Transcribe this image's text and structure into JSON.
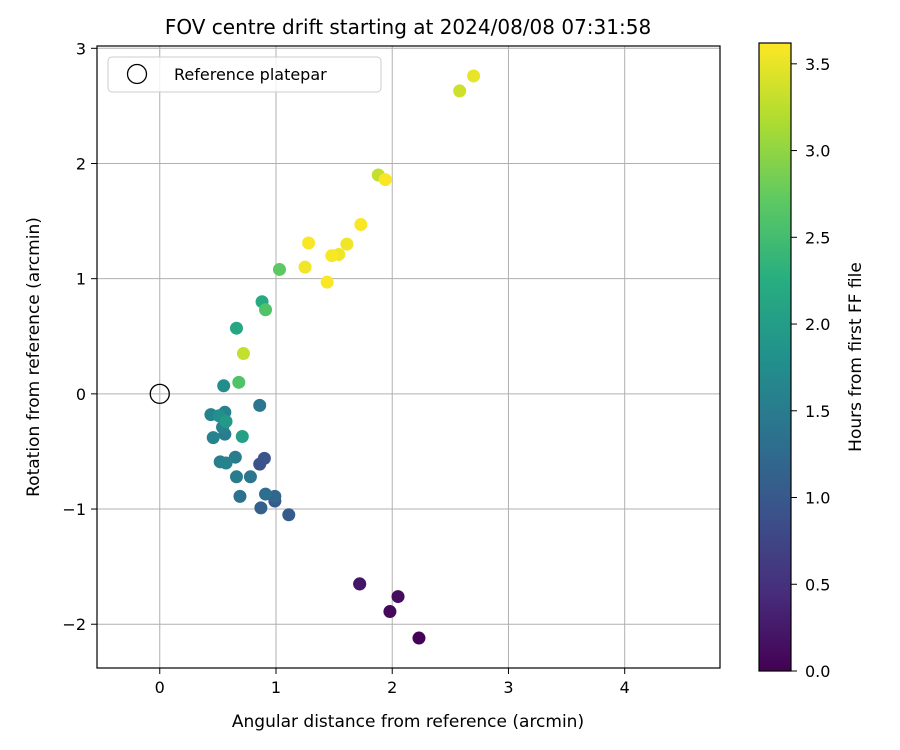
{
  "chart_data": {
    "type": "scatter",
    "title": "FOV centre drift starting at 2024/08/08 07:31:58",
    "xlabel": "Angular distance from reference (arcmin)",
    "ylabel": "Rotation from reference (arcmin)",
    "xlim": [
      -0.54,
      4.82
    ],
    "ylim": [
      -2.38,
      3.02
    ],
    "xticks": [
      0,
      1,
      2,
      3,
      4
    ],
    "yticks": [
      -2,
      -1,
      0,
      1,
      2,
      3
    ],
    "xtick_labels": [
      "0",
      "1",
      "2",
      "3",
      "4"
    ],
    "ytick_labels": [
      "−2",
      "−1",
      "0",
      "1",
      "2",
      "3"
    ],
    "grid": true,
    "legend": {
      "position": "upper-left",
      "entries": [
        "Reference platepar"
      ]
    },
    "reference_point": {
      "x": 0,
      "y": 0
    },
    "colorbar": {
      "label": "Hours from first FF file",
      "colormap": "viridis",
      "range": [
        0,
        3.62
      ],
      "ticks": [
        0,
        0.5,
        1,
        1.5,
        2,
        2.5,
        3,
        3.5
      ],
      "tick_labels": [
        "0.0",
        "0.5",
        "1.0",
        "1.5",
        "2.0",
        "2.5",
        "3.0",
        "3.5"
      ]
    },
    "points": [
      {
        "x": 2.23,
        "y": -2.12,
        "c": 0.02
      },
      {
        "x": 1.98,
        "y": -1.89,
        "c": 0.08
      },
      {
        "x": 2.05,
        "y": -1.76,
        "c": 0.12
      },
      {
        "x": 1.72,
        "y": -1.65,
        "c": 0.18
      },
      {
        "x": 1.72,
        "y": -1.65,
        "c": 0.22
      },
      {
        "x": 1.11,
        "y": -1.05,
        "c": 1.05
      },
      {
        "x": 0.87,
        "y": -0.99,
        "c": 1.1
      },
      {
        "x": 0.99,
        "y": -0.93,
        "c": 1.0
      },
      {
        "x": 0.69,
        "y": -0.89,
        "c": 1.35
      },
      {
        "x": 0.91,
        "y": -0.87,
        "c": 1.3
      },
      {
        "x": 0.99,
        "y": -0.89,
        "c": 1.2
      },
      {
        "x": 0.78,
        "y": -0.72,
        "c": 1.4
      },
      {
        "x": 0.66,
        "y": -0.72,
        "c": 1.5
      },
      {
        "x": 0.86,
        "y": -0.61,
        "c": 0.9
      },
      {
        "x": 0.9,
        "y": -0.56,
        "c": 0.95
      },
      {
        "x": 0.52,
        "y": -0.59,
        "c": 1.55
      },
      {
        "x": 0.57,
        "y": -0.6,
        "c": 1.6
      },
      {
        "x": 0.65,
        "y": -0.55,
        "c": 1.5
      },
      {
        "x": 0.46,
        "y": -0.38,
        "c": 1.6
      },
      {
        "x": 0.56,
        "y": -0.35,
        "c": 1.5
      },
      {
        "x": 0.71,
        "y": -0.37,
        "c": 2.05
      },
      {
        "x": 0.54,
        "y": -0.29,
        "c": 1.6
      },
      {
        "x": 0.57,
        "y": -0.24,
        "c": 1.95
      },
      {
        "x": 0.44,
        "y": -0.18,
        "c": 1.6
      },
      {
        "x": 0.51,
        "y": -0.19,
        "c": 1.8
      },
      {
        "x": 0.56,
        "y": -0.16,
        "c": 1.6
      },
      {
        "x": 0.86,
        "y": -0.1,
        "c": 1.4
      },
      {
        "x": 0.55,
        "y": 0.07,
        "c": 1.75
      },
      {
        "x": 0.68,
        "y": 0.1,
        "c": 2.6
      },
      {
        "x": 0.72,
        "y": 0.35,
        "c": 3.3
      },
      {
        "x": 0.66,
        "y": 0.57,
        "c": 2.15
      },
      {
        "x": 0.91,
        "y": 0.73,
        "c": 2.6
      },
      {
        "x": 0.88,
        "y": 0.8,
        "c": 2.2
      },
      {
        "x": 1.03,
        "y": 1.08,
        "c": 2.7
      },
      {
        "x": 1.25,
        "y": 1.1,
        "c": 3.55
      },
      {
        "x": 1.28,
        "y": 1.31,
        "c": 3.6
      },
      {
        "x": 1.44,
        "y": 0.97,
        "c": 3.6
      },
      {
        "x": 1.48,
        "y": 1.2,
        "c": 3.6
      },
      {
        "x": 1.54,
        "y": 1.21,
        "c": 3.55
      },
      {
        "x": 1.61,
        "y": 1.3,
        "c": 3.55
      },
      {
        "x": 1.73,
        "y": 1.47,
        "c": 3.6
      },
      {
        "x": 1.88,
        "y": 1.9,
        "c": 3.3
      },
      {
        "x": 1.94,
        "y": 1.86,
        "c": 3.6
      },
      {
        "x": 2.58,
        "y": 2.63,
        "c": 3.35
      },
      {
        "x": 2.7,
        "y": 2.76,
        "c": 3.5
      }
    ]
  }
}
